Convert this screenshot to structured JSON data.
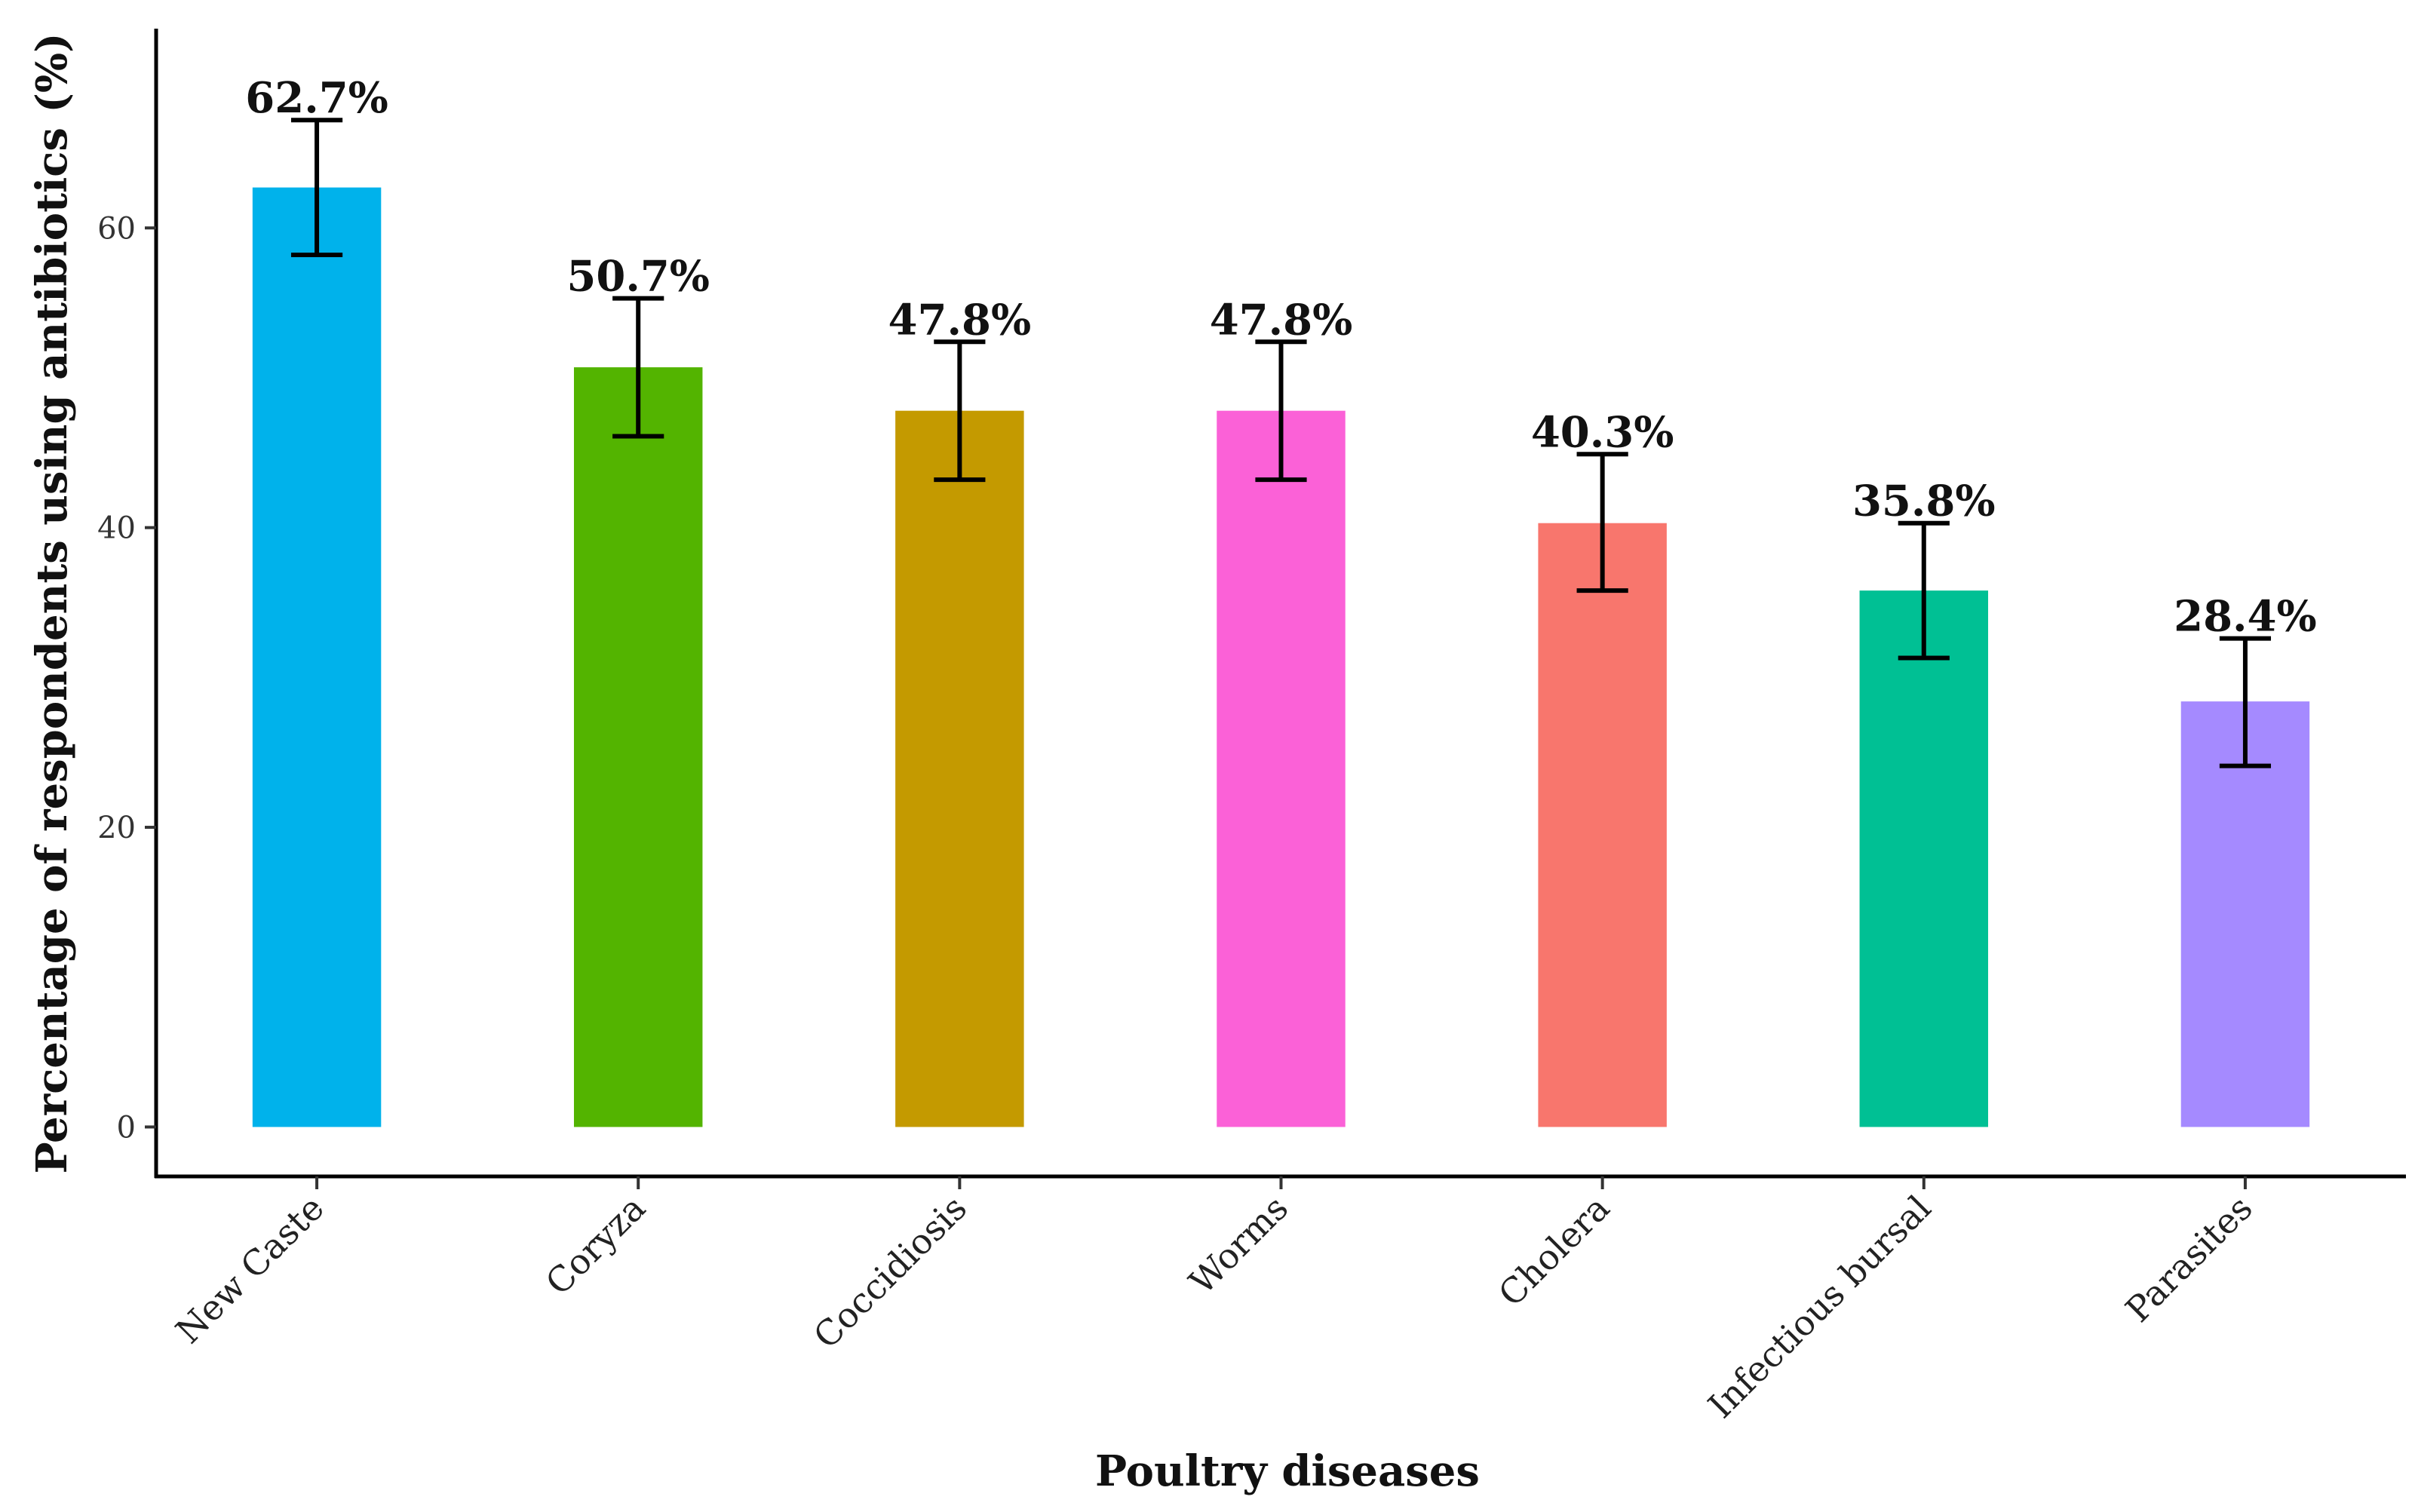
{
  "chart_data": {
    "type": "bar",
    "title": "",
    "xlabel": "Poultry diseases",
    "ylabel": "Percentage of respondents using antibiotics (%)",
    "ylim": [
      -3.3,
      73.3
    ],
    "yticks": [
      0,
      20,
      40,
      60
    ],
    "grid": false,
    "categories": [
      "New Caste",
      "Coryza",
      "Coccidiosis",
      "Worms",
      "Cholera",
      "Infectious bursal",
      "Parasites"
    ],
    "values": [
      62.7,
      50.7,
      47.8,
      47.8,
      40.3,
      35.8,
      28.4
    ],
    "error_low": [
      58.2,
      46.1,
      43.2,
      43.2,
      35.8,
      31.3,
      24.1
    ],
    "error_high": [
      67.2,
      55.3,
      52.4,
      52.4,
      44.9,
      40.3,
      32.6
    ],
    "data_labels": [
      "62.7%",
      "50.7%",
      "47.8%",
      "47.8%",
      "40.3%",
      "35.8%",
      "28.4%"
    ],
    "colors": [
      "#00B2EB",
      "#53B400",
      "#C49A00",
      "#FB61D7",
      "#F8766D",
      "#00C094",
      "#A58AFF"
    ]
  }
}
